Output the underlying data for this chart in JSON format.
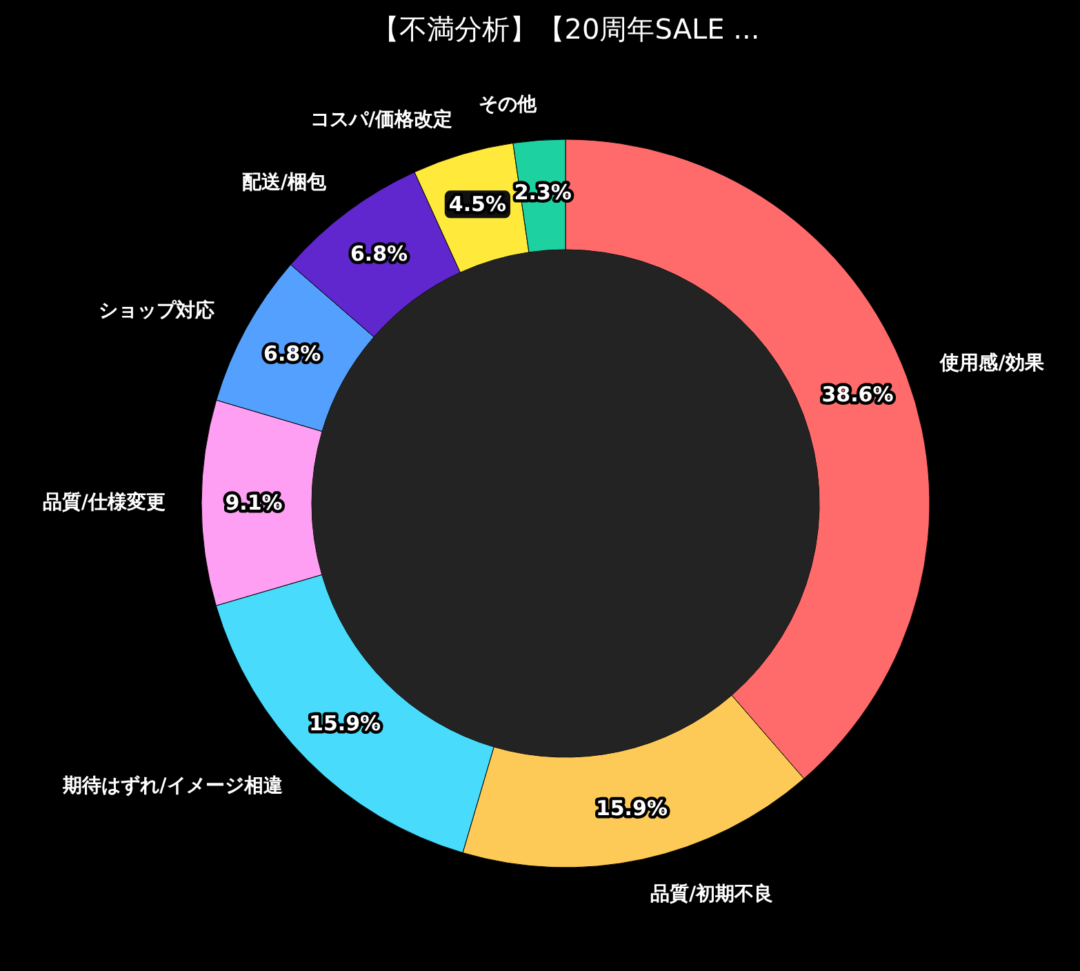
{
  "chart_data": {
    "type": "donut",
    "title": "【不満分析】【20周年SALE ...",
    "categories": [
      "使用感/効果",
      "品質/初期不良",
      "期待はずれ/イメージ相違",
      "品質/仕様変更",
      "ショップ対応",
      "配送/梱包",
      "コスパ/価格改定",
      "その他"
    ],
    "values": [
      38.6,
      15.9,
      15.9,
      9.1,
      6.8,
      6.8,
      4.5,
      2.3
    ],
    "value_labels": [
      "38.6%",
      "15.9%",
      "15.9%",
      "9.1%",
      "6.8%",
      "6.8%",
      "4.5%",
      "2.3%"
    ],
    "colors": [
      "#ff6b6b",
      "#feca57",
      "#48dbfb",
      "#ff9ff3",
      "#54a0ff",
      "#5f27cd",
      "#ffe93b",
      "#1dd1a1"
    ]
  }
}
